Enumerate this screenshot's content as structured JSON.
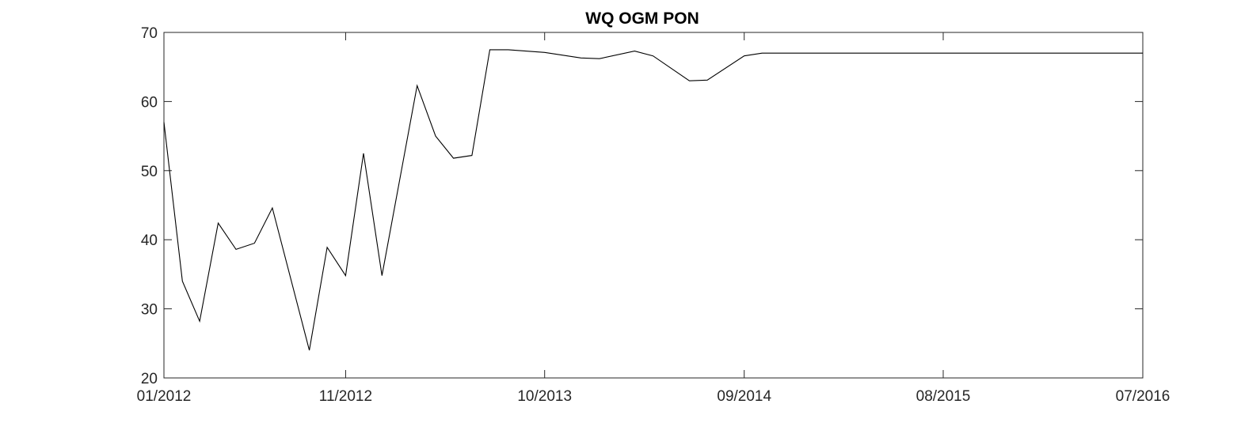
{
  "chart_data": {
    "type": "line",
    "title": "WQ OGM PON",
    "xlabel": "",
    "ylabel": "",
    "grid": false,
    "x_axis_type": "date",
    "xlim": [
      "2012-01-01",
      "2016-07-01"
    ],
    "ylim": [
      20,
      70
    ],
    "x_ticks": [
      {
        "date": "2012-01-01",
        "label": "01/2012"
      },
      {
        "date": "2012-11-01",
        "label": "11/2012"
      },
      {
        "date": "2013-10-01",
        "label": "10/2013"
      },
      {
        "date": "2014-09-01",
        "label": "09/2014"
      },
      {
        "date": "2015-08-01",
        "label": "08/2015"
      },
      {
        "date": "2016-07-01",
        "label": "07/2016"
      }
    ],
    "y_ticks": [
      20,
      30,
      40,
      50,
      60,
      70
    ],
    "line_color": "#000000",
    "series": [
      {
        "x": [
          "2012-01-01",
          "2012-02-01",
          "2012-03-01",
          "2012-04-01",
          "2012-05-01",
          "2012-06-01",
          "2012-07-01",
          "2012-09-01",
          "2012-10-01",
          "2012-11-01",
          "2012-12-01",
          "2013-01-01",
          "2013-03-01",
          "2013-04-01",
          "2013-05-01",
          "2013-06-01",
          "2013-07-01",
          "2013-08-01",
          "2013-10-01",
          "2013-12-01",
          "2014-01-01",
          "2014-03-01",
          "2014-04-01",
          "2014-06-01",
          "2014-07-01",
          "2014-09-01",
          "2014-10-01",
          "2016-07-01"
        ],
        "y": [
          57,
          34,
          28.2,
          42.4,
          38.6,
          39.5,
          44.6,
          24,
          38.9,
          34.8,
          52.5,
          34.8,
          62.3,
          55,
          51.8,
          52.2,
          67.5,
          67.5,
          67.1,
          66.3,
          66.2,
          67.3,
          66.6,
          63,
          63.1,
          66.6,
          67,
          67
        ]
      }
    ]
  }
}
